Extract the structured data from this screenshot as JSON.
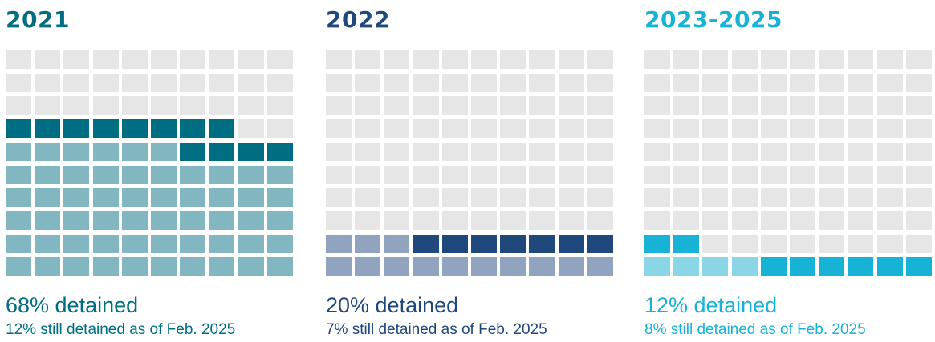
{
  "chart_data": [
    {
      "type": "waffle",
      "title": "2021",
      "total_cells": 100,
      "rows": 10,
      "cols": 10,
      "detained_pct": 68,
      "still_detained_pct": 12,
      "detained_label": "68% detained",
      "still_label": "12% still detained as of Feb. 2025",
      "colors": {
        "title": "#006e82",
        "empty": "#e6e6e6",
        "detained": "#82b7c2",
        "still_detained": "#006e82",
        "text": "#006e82"
      }
    },
    {
      "type": "waffle",
      "title": "2022",
      "total_cells": 100,
      "rows": 10,
      "cols": 10,
      "detained_pct": 20,
      "still_detained_pct": 7,
      "detained_label": "20% detained",
      "still_label": "7% still detained as of Feb. 2025",
      "colors": {
        "title": "#1f497d",
        "empty": "#e6e6e6",
        "detained": "#91a4bf",
        "still_detained": "#1f497d",
        "text": "#1f497d"
      }
    },
    {
      "type": "waffle",
      "title": "2023-2025",
      "total_cells": 100,
      "rows": 10,
      "cols": 10,
      "detained_pct": 12,
      "still_detained_pct": 8,
      "detained_label": "12% detained",
      "still_label": "8% still detained as of Feb. 2025",
      "colors": {
        "title": "#17b3d6",
        "empty": "#e6e6e6",
        "detained": "#8ad5e6",
        "still_detained": "#17b3d6",
        "text": "#17b3d6"
      }
    }
  ]
}
